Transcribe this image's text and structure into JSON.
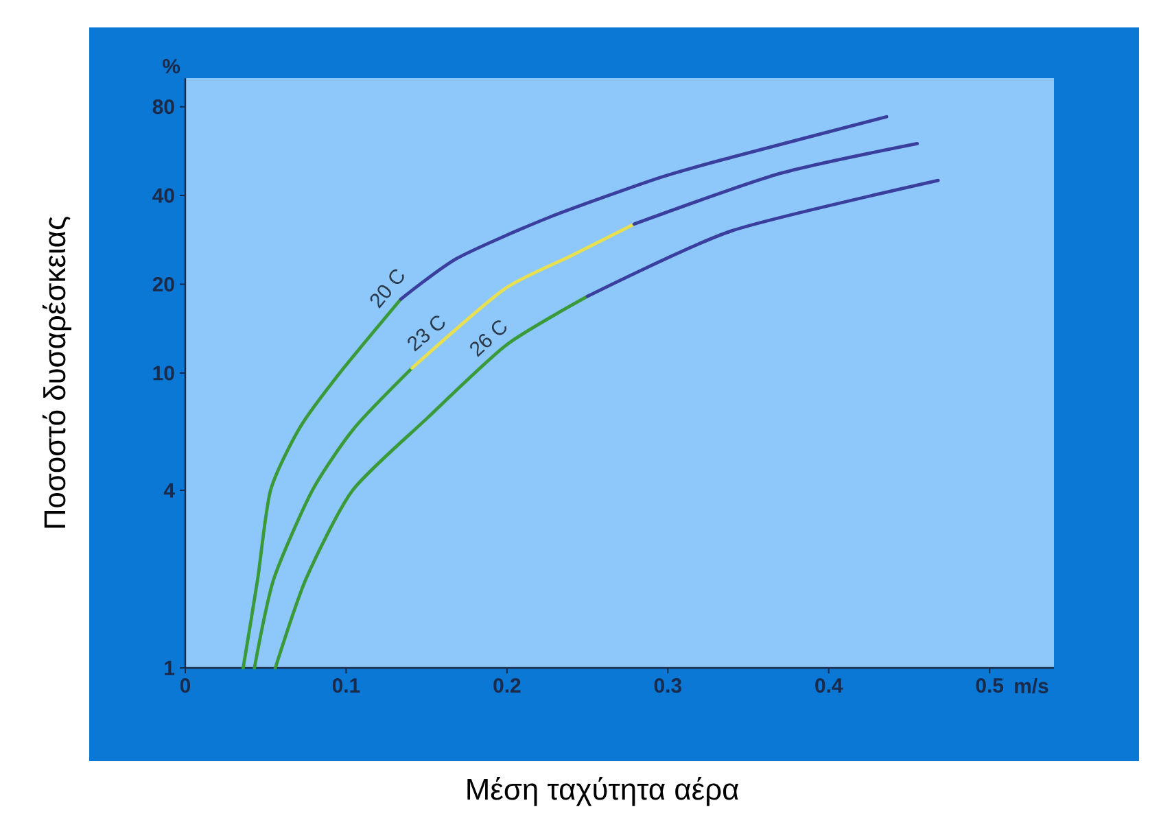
{
  "chart_data": {
    "type": "line",
    "xlabel": "Μέση ταχύτητα αέρα",
    "ylabel": "Ποσοστό δυσαρέσκειας",
    "log": "y",
    "xlim": [
      0,
      0.54
    ],
    "ylim": [
      1,
      100
    ],
    "xticks": [
      0,
      0.1,
      0.2,
      0.3,
      0.4,
      0.5
    ],
    "yticks": [
      1,
      4,
      10,
      20,
      40,
      80
    ],
    "annotations": [
      "%",
      "m/s"
    ],
    "grid": false,
    "marker": "none",
    "line_style": "solid",
    "series": [
      {
        "name": "20 C",
        "color": "#3a9a3a",
        "x": [
          0.036,
          0.045,
          0.053,
          0.071,
          0.096,
          0.134
        ],
        "values": [
          1,
          2,
          4,
          6.5,
          10,
          17.8
        ]
      },
      {
        "color": "#3a3f9e",
        "x": [
          0.134,
          0.169,
          0.226,
          0.295,
          0.34,
          0.436
        ],
        "values": [
          17.8,
          24.5,
          33.7,
          46,
          54,
          74
        ]
      },
      {
        "color": "#3a9a3a",
        "x": [
          0.043,
          0.055,
          0.079,
          0.105,
          0.141
        ],
        "values": [
          1,
          2,
          4,
          6.5,
          10.4
        ]
      },
      {
        "name": "23 C",
        "color": "#e8e050",
        "x": [
          0.141,
          0.198,
          0.24,
          0.279
        ],
        "values": [
          10.4,
          19.2,
          25,
          32
        ]
      },
      {
        "color": "#3a3f9e",
        "x": [
          0.279,
          0.369,
          0.455
        ],
        "values": [
          32,
          47.4,
          60
        ]
      },
      {
        "name": "26 C",
        "color": "#3a9a3a",
        "x": [
          0.056,
          0.075,
          0.104,
          0.15,
          0.2,
          0.25
        ],
        "values": [
          1,
          2,
          4,
          7,
          12.5,
          18.2
        ]
      },
      {
        "color": "#3a3f9e",
        "x": [
          0.25,
          0.34,
          0.468
        ],
        "values": [
          18.2,
          30.4,
          45
        ]
      }
    ]
  }
}
